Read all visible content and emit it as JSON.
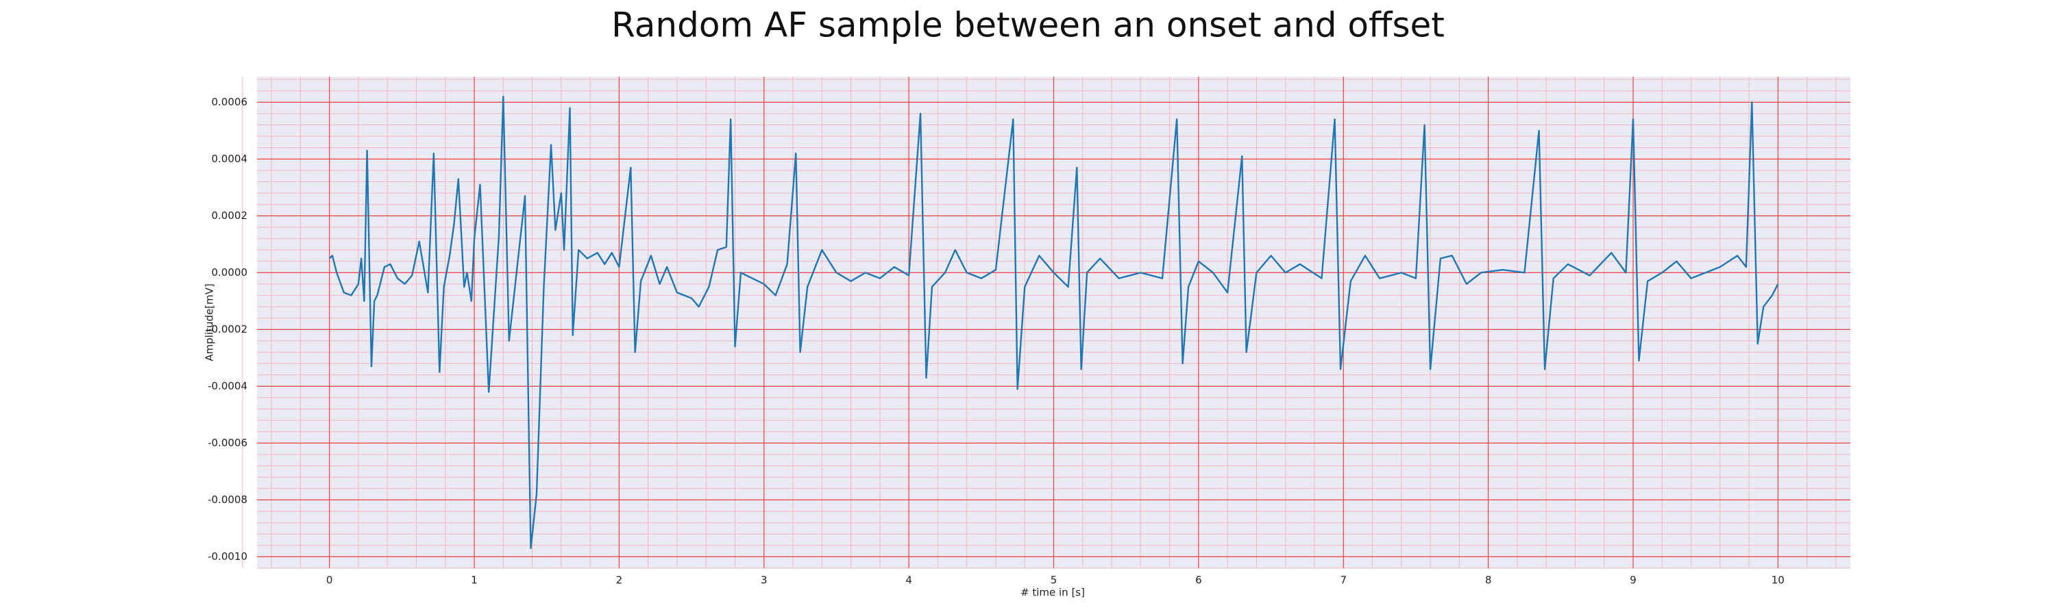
{
  "chart_data": {
    "type": "line",
    "title": "Random AF sample between an onset and offset",
    "x_label": "# time in [s]",
    "y_label": "Amplitude[mV]",
    "xlim": [
      -0.5,
      10.5
    ],
    "ylim": [
      -0.00104,
      0.00069
    ],
    "xticks": [
      0,
      1,
      2,
      3,
      4,
      5,
      6,
      7,
      8,
      9,
      10
    ],
    "yticks": [
      {
        "value": -0.001,
        "label": "-0.0010"
      },
      {
        "value": -0.0008,
        "label": "-0.0008"
      },
      {
        "value": -0.0006,
        "label": "-0.0006"
      },
      {
        "value": -0.0004,
        "label": "-0.0004"
      },
      {
        "value": -0.0002,
        "label": "-0.0002"
      },
      {
        "value": 0,
        "label": "0.0000"
      },
      {
        "value": 0.0002,
        "label": "0.0002"
      },
      {
        "value": 0.0004,
        "label": "0.0004"
      },
      {
        "value": 0.0006,
        "label": "0.0006"
      }
    ],
    "grid": true,
    "series": [
      {
        "color": "#1f77b4",
        "x": [
          0,
          0.02,
          0.05,
          0.1,
          0.15,
          0.2,
          0.22,
          0.24,
          0.26,
          0.29,
          0.31,
          0.33,
          0.38,
          0.42,
          0.47,
          0.52,
          0.57,
          0.62,
          0.68,
          0.72,
          0.76,
          0.79,
          0.83,
          0.86,
          0.89,
          0.93,
          0.95,
          0.98,
          1.0,
          1.04,
          1.1,
          1.17,
          1.2,
          1.24,
          1.35,
          1.39,
          1.43,
          1.48,
          1.53,
          1.56,
          1.6,
          1.62,
          1.66,
          1.68,
          1.72,
          1.78,
          1.85,
          1.9,
          1.95,
          2.0,
          2.08,
          2.11,
          2.15,
          2.22,
          2.28,
          2.33,
          2.4,
          2.5,
          2.55,
          2.62,
          2.68,
          2.74,
          2.77,
          2.8,
          2.84,
          2.92,
          3.0,
          3.08,
          3.16,
          3.22,
          3.25,
          3.3,
          3.4,
          3.5,
          3.6,
          3.7,
          3.8,
          3.9,
          4.0,
          4.08,
          4.12,
          4.16,
          4.25,
          4.32,
          4.4,
          4.5,
          4.6,
          4.72,
          4.75,
          4.8,
          4.9,
          5.0,
          5.1,
          5.16,
          5.19,
          5.23,
          5.32,
          5.45,
          5.6,
          5.75,
          5.85,
          5.89,
          5.93,
          6.0,
          6.1,
          6.2,
          6.3,
          6.33,
          6.4,
          6.5,
          6.6,
          6.7,
          6.85,
          6.94,
          6.98,
          7.05,
          7.15,
          7.25,
          7.4,
          7.5,
          7.56,
          7.6,
          7.67,
          7.75,
          7.85,
          7.95,
          8.1,
          8.25,
          8.35,
          8.39,
          8.45,
          8.55,
          8.7,
          8.85,
          8.95,
          9.0,
          9.04,
          9.1,
          9.2,
          9.3,
          9.4,
          9.5,
          9.6,
          9.72,
          9.78,
          9.82,
          9.86,
          9.9,
          9.96,
          10.0
        ],
        "values": [
          5e-05,
          6e-05,
          0.0,
          -7e-05,
          -8e-05,
          -4e-05,
          5e-05,
          -0.0001,
          0.00043,
          -0.00033,
          -0.0001,
          -8e-05,
          2e-05,
          3e-05,
          -2e-05,
          -4e-05,
          -1e-05,
          0.00011,
          -7e-05,
          0.00042,
          -0.00035,
          -5e-05,
          6e-05,
          0.00017,
          0.00033,
          -5e-05,
          0.0,
          -0.0001,
          0.00012,
          0.00031,
          -0.00042,
          0.00013,
          0.00062,
          -0.00024,
          0.00027,
          -0.00097,
          -0.00078,
          -5e-05,
          0.00045,
          0.00015,
          0.00028,
          8e-05,
          0.00058,
          -0.00022,
          8e-05,
          5e-05,
          7e-05,
          3e-05,
          7e-05,
          2e-05,
          0.00037,
          -0.00028,
          -3e-05,
          6e-05,
          -4e-05,
          2e-05,
          -7e-05,
          -9e-05,
          -0.00012,
          -5e-05,
          8e-05,
          9e-05,
          0.00054,
          -0.00026,
          0.0,
          -2e-05,
          -4e-05,
          -8e-05,
          3e-05,
          0.00042,
          -0.00028,
          -5e-05,
          8e-05,
          0.0,
          -3e-05,
          0.0,
          -2e-05,
          2e-05,
          -1e-05,
          0.00056,
          -0.00037,
          -5e-05,
          0.0,
          8e-05,
          0.0,
          -2e-05,
          1e-05,
          0.00054,
          -0.00041,
          -5e-05,
          6e-05,
          0.0,
          -5e-05,
          0.00037,
          -0.00034,
          0.0,
          5e-05,
          -2e-05,
          0.0,
          -2e-05,
          0.00054,
          -0.00032,
          -5e-05,
          4e-05,
          0.0,
          -7e-05,
          0.00041,
          -0.00028,
          0.0,
          6e-05,
          0.0,
          3e-05,
          -2e-05,
          0.00054,
          -0.00034,
          -3e-05,
          6e-05,
          -2e-05,
          0.0,
          -2e-05,
          0.00052,
          -0.00034,
          5e-05,
          6e-05,
          -4e-05,
          0.0,
          1e-05,
          0.0,
          0.0005,
          -0.00034,
          -2e-05,
          3e-05,
          -1e-05,
          7e-05,
          0.0,
          0.00054,
          -0.00031,
          -3e-05,
          0.0,
          4e-05,
          -2e-05,
          0.0,
          2e-05,
          6e-05,
          2e-05,
          0.0006,
          -0.00025,
          -0.00012,
          -8e-05,
          -4e-05
        ]
      }
    ]
  }
}
